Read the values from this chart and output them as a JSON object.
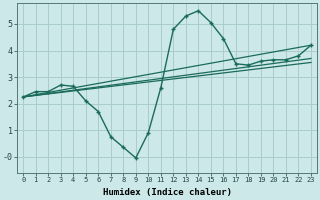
{
  "background_color": "#cce8e8",
  "grid_color": "#aacccc",
  "line_color": "#1a6b5a",
  "xlabel": "Humidex (Indice chaleur)",
  "xlim": [
    -0.5,
    23.5
  ],
  "ylim": [
    -0.6,
    5.8
  ],
  "xticks": [
    0,
    1,
    2,
    3,
    4,
    5,
    6,
    7,
    8,
    9,
    10,
    11,
    12,
    13,
    14,
    15,
    16,
    17,
    18,
    19,
    20,
    21,
    22,
    23
  ],
  "yticks": [
    0,
    1,
    2,
    3,
    4,
    5
  ],
  "ytick_labels": [
    "-0",
    "1",
    "2",
    "3",
    "4",
    "5"
  ],
  "curve1_x": [
    0,
    1,
    2,
    3,
    4,
    5,
    6,
    7,
    8,
    9,
    10,
    11,
    12,
    13,
    14,
    15,
    16,
    17,
    18,
    19,
    20,
    21,
    22,
    23
  ],
  "curve1_y": [
    2.25,
    2.45,
    2.45,
    2.7,
    2.65,
    2.1,
    1.7,
    0.75,
    0.35,
    -0.05,
    0.9,
    2.6,
    4.8,
    5.3,
    5.5,
    5.05,
    4.45,
    3.5,
    3.45,
    3.6,
    3.65,
    3.65,
    3.8,
    4.2
  ],
  "curve2_x": [
    0,
    23
  ],
  "curve2_y": [
    2.25,
    4.2
  ],
  "curve3_x": [
    0,
    23
  ],
  "curve3_y": [
    2.25,
    3.7
  ],
  "curve4_x": [
    0,
    23
  ],
  "curve4_y": [
    2.25,
    3.55
  ]
}
